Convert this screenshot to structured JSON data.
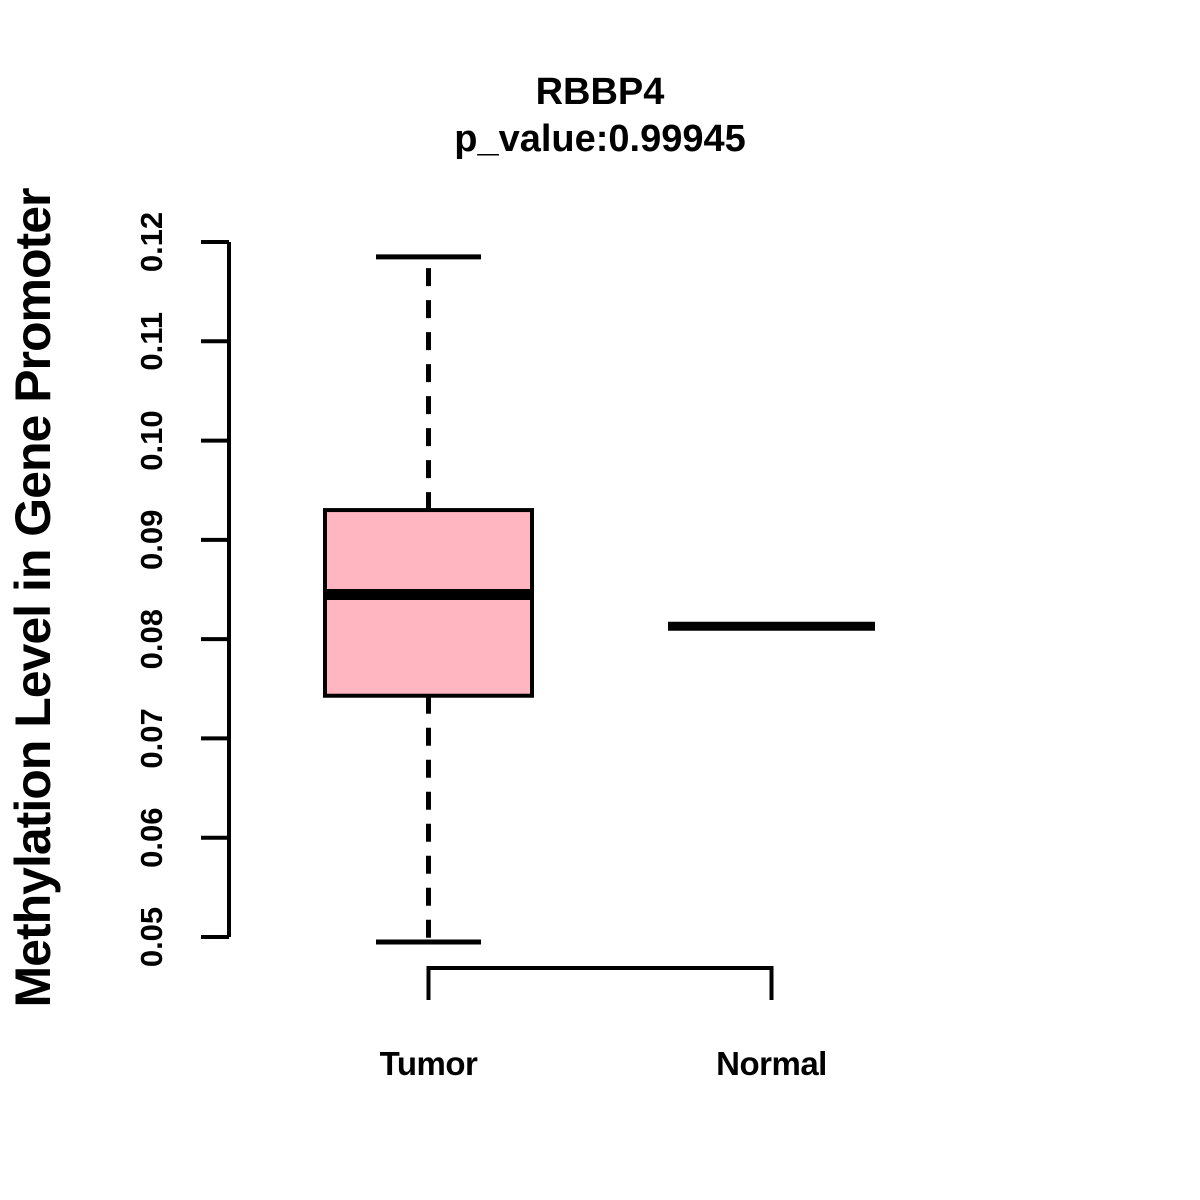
{
  "header": {
    "title": "RBBP4",
    "subtitle": "p_value:0.99945"
  },
  "chart_data": {
    "type": "boxplot",
    "title": "RBBP4",
    "subtitle": "p_value:0.99945",
    "p_value": "0.99945",
    "gene": "RBBP4",
    "ylabel": "Methylation Level in Gene Promoter",
    "xlabel": "",
    "ylim": [
      0.05,
      0.12
    ],
    "ytick_labels": [
      "0.05",
      "0.06",
      "0.07",
      "0.08",
      "0.09",
      "0.10",
      "0.11",
      "0.12"
    ],
    "ytick_values": [
      0.05,
      0.06,
      0.07,
      0.08,
      0.09,
      0.1,
      0.11,
      0.12
    ],
    "categories": [
      "Tumor",
      "Normal"
    ],
    "grid": false,
    "legend": "none",
    "series": [
      {
        "name": "Tumor",
        "whisker_low": 0.0495,
        "q1": 0.0743,
        "median": 0.0845,
        "q3": 0.093,
        "whisker_high": 0.1185,
        "has_box": true,
        "box_fill": "#FFB6C1"
      },
      {
        "name": "Normal",
        "whisker_low": 0.0813,
        "q1": 0.0813,
        "median": 0.0813,
        "q3": 0.0813,
        "whisker_high": 0.0813,
        "has_box": false,
        "box_fill": "#FFB6C1"
      }
    ],
    "colors": {
      "stroke": "#000000",
      "box_fill": "#FFB6C1",
      "background": "#FFFFFF"
    }
  }
}
